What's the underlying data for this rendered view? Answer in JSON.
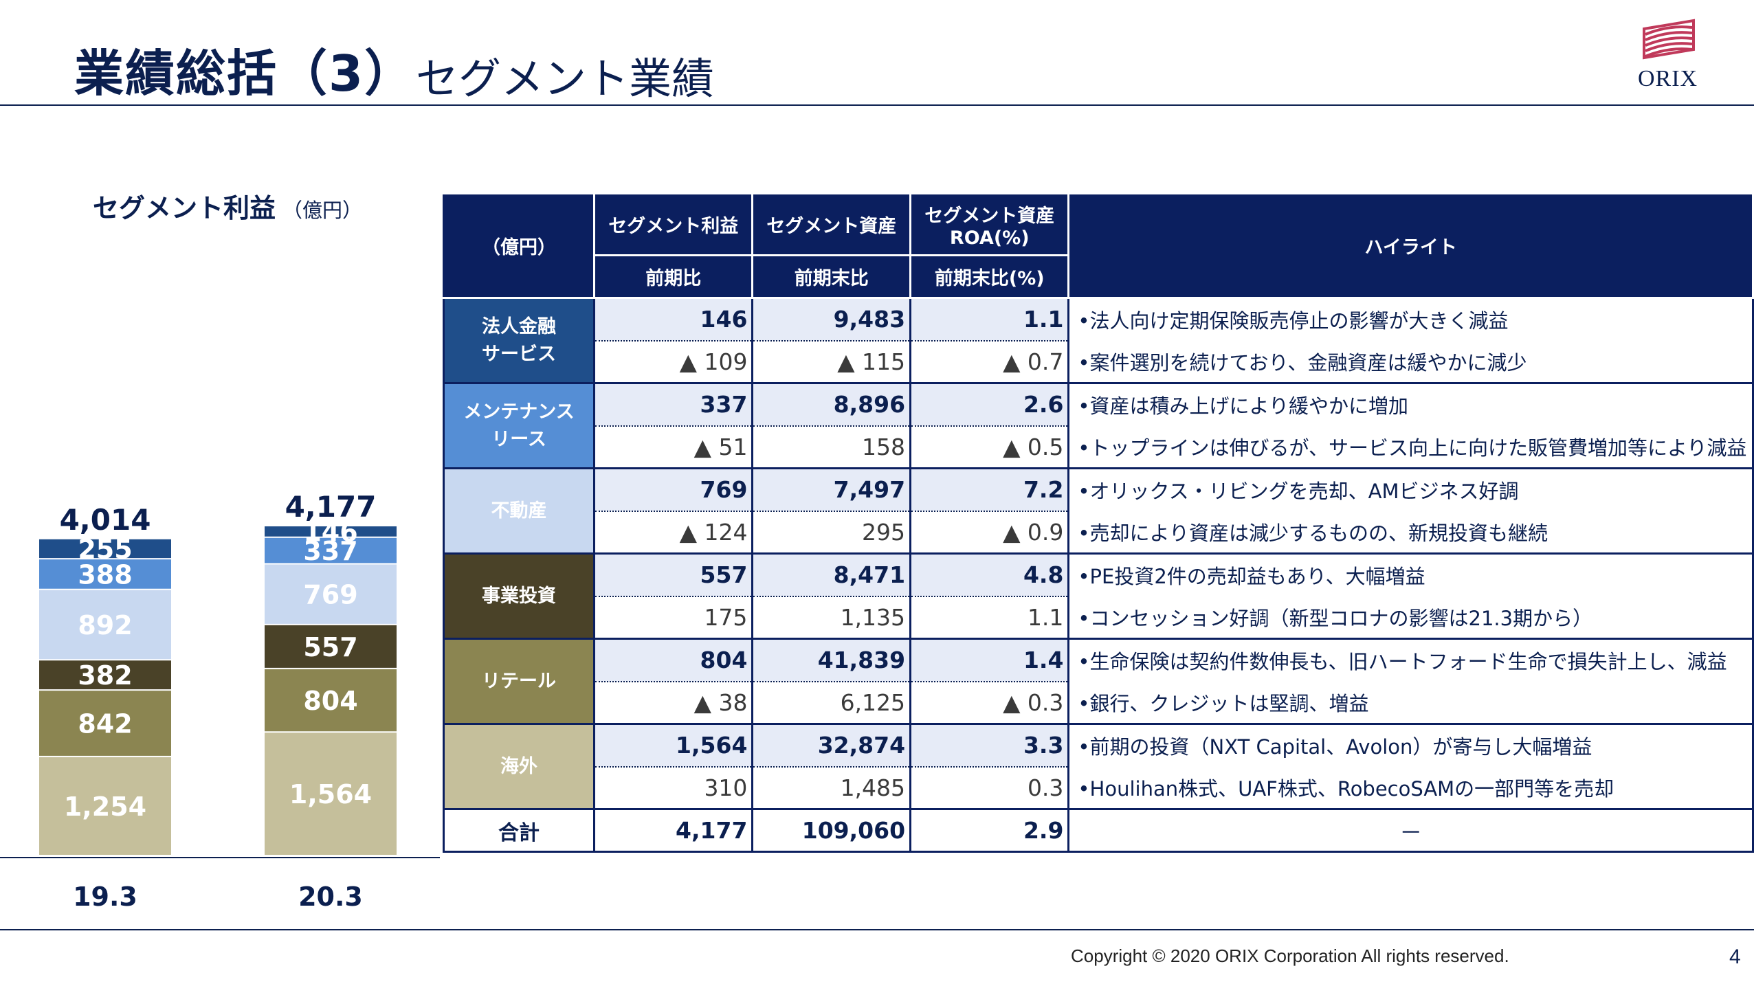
{
  "header": {
    "title_main": "業績総括（3）",
    "title_sub": "セグメント業績",
    "logo_text": "ORIX"
  },
  "chart_data": {
    "type": "bar",
    "stacked": true,
    "title": "セグメント利益",
    "unit": "（億円）",
    "categories": [
      "19.3",
      "20.3"
    ],
    "totals": [
      "4,014",
      "4,177"
    ],
    "series": [
      {
        "key": "overseas",
        "values": [
          1254,
          1564
        ],
        "labels": [
          "1,254",
          "1,564"
        ],
        "color": "#c5bf9b",
        "text_color": "#ffffff"
      },
      {
        "key": "retail",
        "values": [
          842,
          804
        ],
        "labels": [
          "842",
          "804"
        ],
        "color": "#8b8551",
        "text_color": "#ffffff"
      },
      {
        "key": "pe",
        "values": [
          382,
          557
        ],
        "labels": [
          "382",
          "557"
        ],
        "color": "#4a4228",
        "text_color": "#ffffff"
      },
      {
        "key": "realestate",
        "values": [
          892,
          769
        ],
        "labels": [
          "892",
          "769"
        ],
        "color": "#c8d8f0",
        "text_color": "#ffffff"
      },
      {
        "key": "maintenance",
        "values": [
          388,
          337
        ],
        "labels": [
          "388",
          "337"
        ],
        "color": "#558ed5",
        "text_color": "#ffffff"
      },
      {
        "key": "corporate",
        "values": [
          255,
          146
        ],
        "labels": [
          "255",
          "146"
        ],
        "color": "#1f4e8a",
        "text_color": "#ffffff"
      }
    ],
    "ylim": [
      0,
      4177
    ]
  },
  "table": {
    "header": {
      "unit": "（億円）",
      "col1": "セグメント利益",
      "col2": "セグメント資産",
      "col3_line1": "セグメント資産",
      "col3_line2": "ROA(%)",
      "col4": "ハイライト",
      "sub1": "前期比",
      "sub2": "前期末比",
      "sub3": "前期末比(%)"
    },
    "rows": [
      {
        "name1": "法人金融",
        "name2": "サービス",
        "color": "#1f4e8a",
        "profit": "146",
        "profit_chg": "▲ 109",
        "assets": "9,483",
        "assets_chg": "▲ 115",
        "roa": "1.1",
        "roa_chg": "▲ 0.7",
        "hl1": "•法人向け定期保険販売停止の影響が大きく減益",
        "hl2": "•案件選別を続けており、金融資産は緩やかに減少"
      },
      {
        "name1": "メンテナンス",
        "name2": "リース",
        "color": "#558ed5",
        "profit": "337",
        "profit_chg": "▲ 51",
        "assets": "8,896",
        "assets_chg": "158",
        "roa": "2.6",
        "roa_chg": "▲ 0.5",
        "hl1": "•資産は積み上げにより緩やかに増加",
        "hl2": "•トップラインは伸びるが、サービス向上に向けた販管費増加等により減益"
      },
      {
        "name1": "不動産",
        "name2": "",
        "color": "#c8d8f0",
        "profit": "769",
        "profit_chg": "▲ 124",
        "assets": "7,497",
        "assets_chg": "295",
        "roa": "7.2",
        "roa_chg": "▲ 0.9",
        "hl1": "•オリックス・リビングを売却、AMビジネス好調",
        "hl2": "•売却により資産は減少するものの、新規投資も継続"
      },
      {
        "name1": "事業投資",
        "name2": "",
        "color": "#4a4228",
        "profit": "557",
        "profit_chg": "175",
        "assets": "8,471",
        "assets_chg": "1,135",
        "roa": "4.8",
        "roa_chg": "1.1",
        "hl1": "•PE投資2件の売却益もあり、大幅増益",
        "hl2": "•コンセッション好調（新型コロナの影響は21.3期から）"
      },
      {
        "name1": "リテール",
        "name2": "",
        "color": "#8b8551",
        "profit": "804",
        "profit_chg": "▲ 38",
        "assets": "41,839",
        "assets_chg": "6,125",
        "roa": "1.4",
        "roa_chg": "▲ 0.3",
        "hl1": "•生命保険は契約件数伸長も、旧ハートフォード生命で損失計上し、減益",
        "hl2": "•銀行、クレジットは堅調、増益"
      },
      {
        "name1": "海外",
        "name2": "",
        "color": "#c5bf9b",
        "profit": "1,564",
        "profit_chg": "310",
        "assets": "32,874",
        "assets_chg": "1,485",
        "roa": "3.3",
        "roa_chg": "0.3",
        "hl1": "•前期の投資（NXT Capital、Avolon）が寄与し大幅増益",
        "hl2": "•Houlihan株式、UAF株式、RobecoSAMの一部門等を売却"
      }
    ],
    "total": {
      "label": "合計",
      "profit": "4,177",
      "assets": "109,060",
      "roa": "2.9",
      "highlight": "－"
    }
  },
  "footer": {
    "copyright": "Copyright © 2020 ORIX Corporation  All rights reserved.",
    "page": "4"
  }
}
